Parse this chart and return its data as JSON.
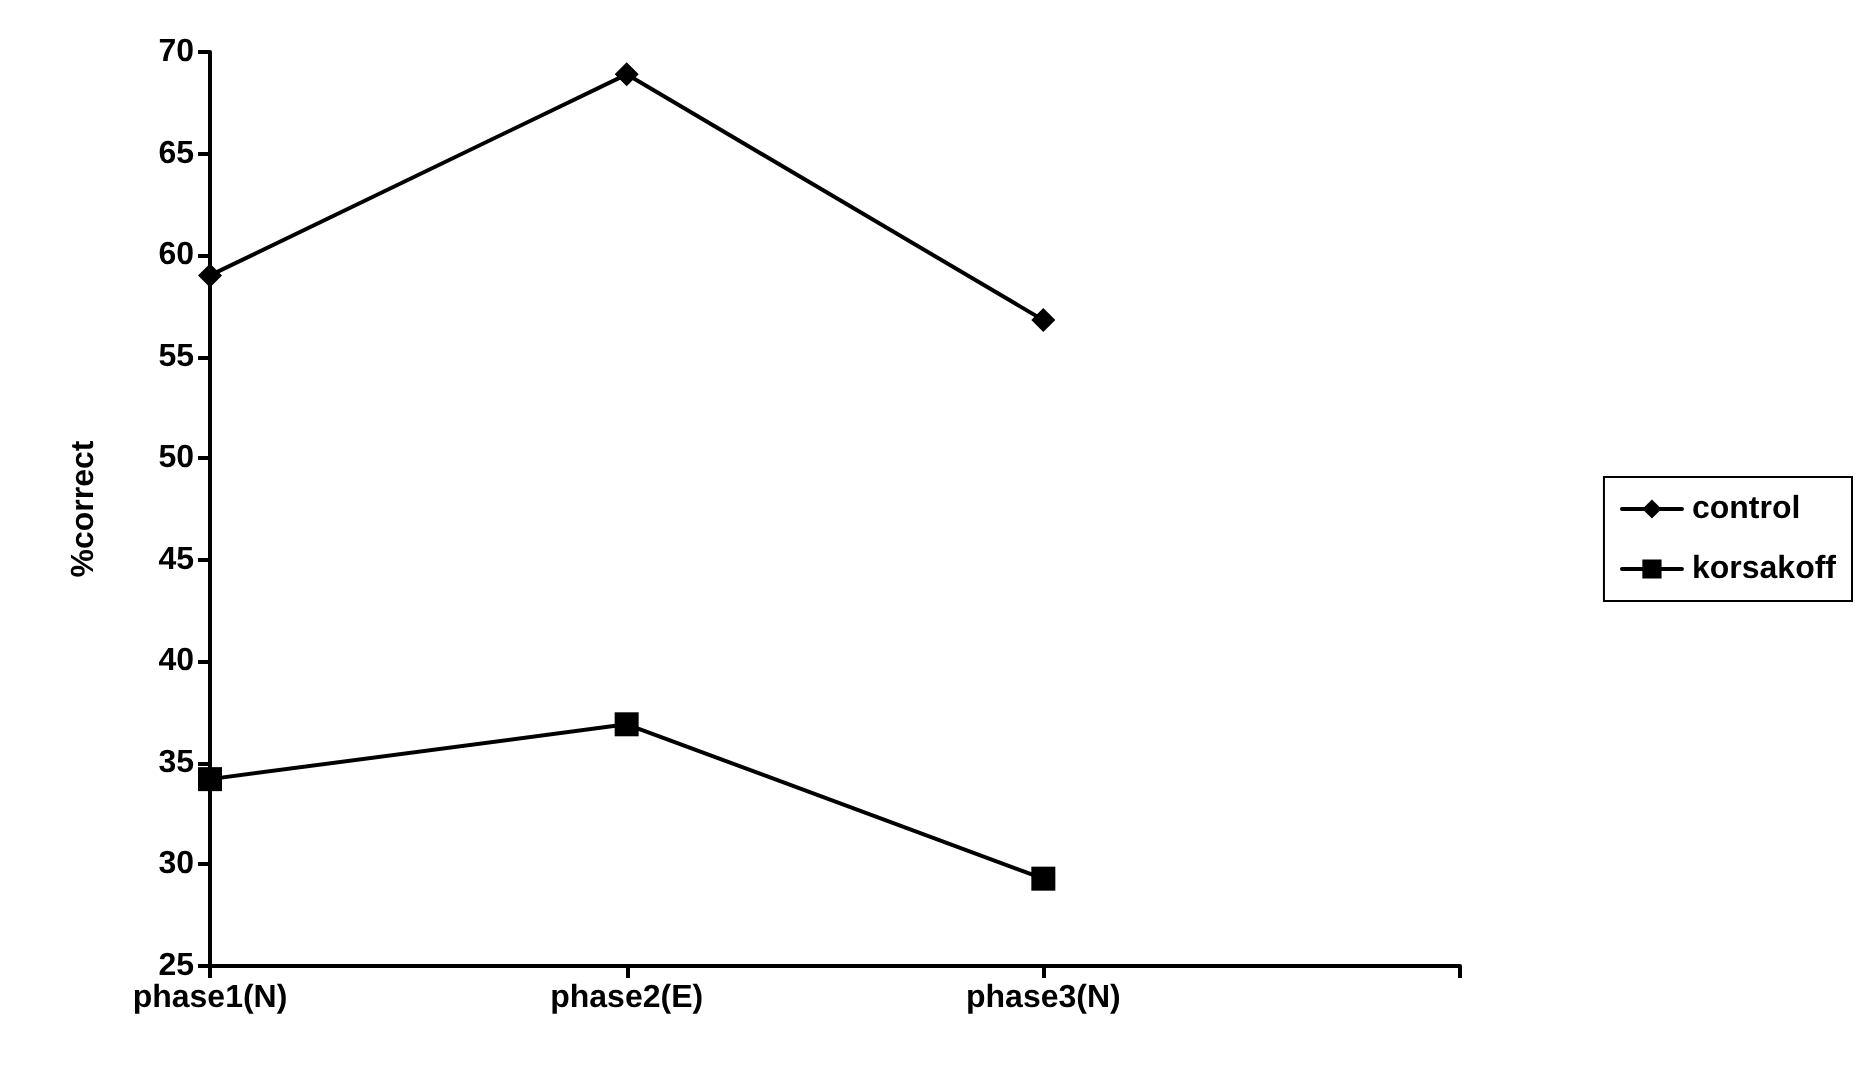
{
  "chart_data": {
    "type": "line",
    "ylabel": "%correct",
    "categories": [
      "phase1(N)",
      "phase2(E)",
      "phase3(N)",
      null
    ],
    "series": [
      {
        "name": "control",
        "color": "#000000",
        "marker": "diamond",
        "values": [
          59,
          68.9,
          56.8,
          null
        ]
      },
      {
        "name": "korsakoff",
        "color": "#000000",
        "marker": "square",
        "values": [
          34.2,
          36.9,
          29.3,
          null
        ]
      }
    ],
    "ylim": [
      25,
      70
    ],
    "yticks": [
      25,
      30,
      35,
      40,
      45,
      50,
      55,
      60,
      65,
      70
    ],
    "grid": false,
    "legend": "right",
    "line_style": "solid"
  }
}
